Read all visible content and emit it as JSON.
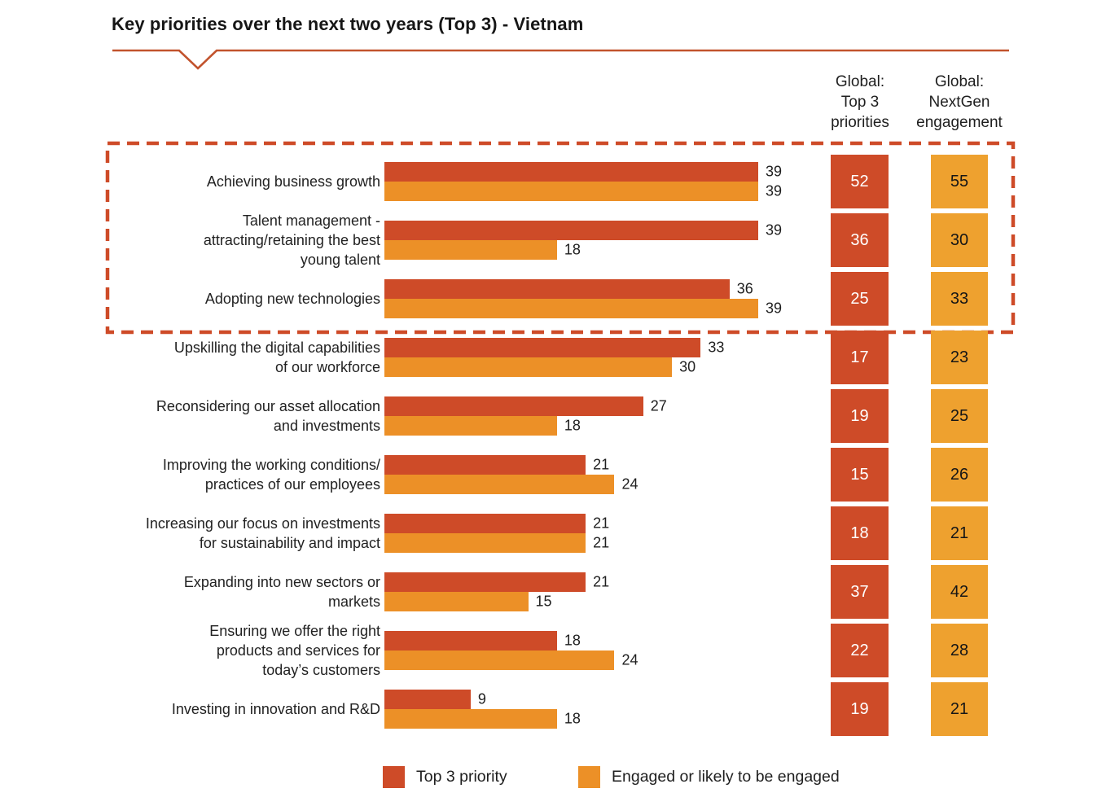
{
  "title": "Key priorities over the next two years (Top 3) - Vietnam",
  "global_columns": {
    "top3_header": "Global:\nTop 3\npriorities",
    "nextgen_header": "Global:\nNextGen\nengagement"
  },
  "legend": {
    "top3_label": "Top 3 priority",
    "engaged_label": "Engaged or likely to be engaged"
  },
  "colors": {
    "top3": "#CE4B28",
    "engaged": "#EC9027",
    "nextgen_box": "#EEA12F",
    "accent_line": "#C2532D"
  },
  "chart_data": {
    "type": "bar",
    "orientation": "horizontal",
    "unit": "percent",
    "xlim": [
      0,
      45
    ],
    "legend_position": "bottom",
    "highlighted_rows": [
      0,
      1,
      2
    ],
    "categories": [
      "Achieving business growth",
      "Talent management -\nattracting/retaining the best\nyoung talent",
      "Adopting new technologies",
      "Upskilling the digital capabilities\nof our workforce",
      "Reconsidering our asset allocation\nand investments",
      "Improving the working conditions/\npractices of our employees",
      "Increasing our focus on investments\nfor sustainability and impact",
      "Expanding into new sectors or\nmarkets",
      "Ensuring we offer the right\nproducts and services for\ntoday’s customers",
      "Investing in innovation and R&D"
    ],
    "series": [
      {
        "name": "Top 3 priority",
        "values": [
          39,
          39,
          36,
          33,
          27,
          21,
          21,
          21,
          18,
          9
        ]
      },
      {
        "name": "Engaged or likely to be engaged",
        "values": [
          39,
          18,
          39,
          30,
          18,
          24,
          21,
          15,
          24,
          18
        ]
      }
    ],
    "global_top3_priorities": [
      52,
      36,
      25,
      17,
      19,
      15,
      18,
      37,
      22,
      19
    ],
    "global_nextgen_engagement": [
      55,
      30,
      33,
      23,
      25,
      26,
      21,
      42,
      28,
      21
    ]
  }
}
